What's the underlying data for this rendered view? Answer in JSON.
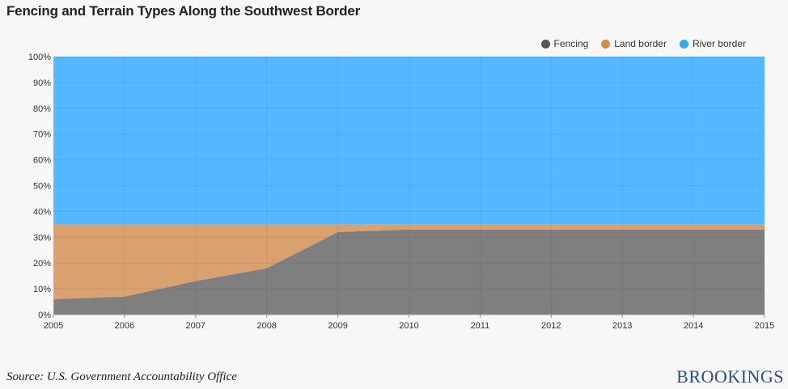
{
  "chart_data": {
    "type": "area",
    "stacked": true,
    "normalized": true,
    "title": "Fencing and Terrain Types Along the Southwest Border",
    "x": [
      2005,
      2006,
      2007,
      2008,
      2009,
      2010,
      2011,
      2012,
      2013,
      2014,
      2015
    ],
    "series": [
      {
        "name": "Fencing",
        "color": "#7f7f7f",
        "legend_color": "#555555",
        "values": [
          6,
          7,
          13,
          18,
          32,
          33,
          33,
          33,
          33,
          33,
          33
        ]
      },
      {
        "name": "Land border",
        "color": "#d9a070",
        "legend_color": "#d58a4a",
        "values": [
          29,
          28,
          22,
          17,
          3,
          2,
          2,
          2,
          2,
          2,
          2
        ]
      },
      {
        "name": "River border",
        "color": "#53b8ff",
        "legend_color": "#3aa9f5",
        "values": [
          65,
          65,
          65,
          65,
          65,
          65,
          65,
          65,
          65,
          65,
          65
        ]
      }
    ],
    "ylim": [
      0,
      100
    ],
    "yticks": [
      "0%",
      "10%",
      "20%",
      "30%",
      "40%",
      "50%",
      "60%",
      "70%",
      "80%",
      "90%",
      "100%"
    ],
    "xticks": [
      "2005",
      "2006",
      "2007",
      "2008",
      "2009",
      "2010",
      "2011",
      "2012",
      "2013",
      "2014",
      "2015"
    ],
    "grid": true,
    "legend_position": "top-right"
  },
  "footer": {
    "source": "Source: U.S. Government Accountability Office",
    "brand": "BROOKINGS"
  }
}
